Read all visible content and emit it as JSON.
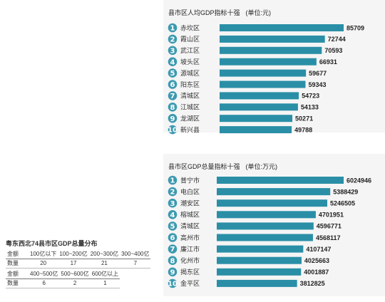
{
  "chart_data": [
    {
      "type": "bar",
      "orientation": "horizontal",
      "title": "县市区人均GDP指标十强",
      "unit": "(单位:元)",
      "ranks": [
        "1",
        "2",
        "3",
        "4",
        "5",
        "6",
        "7",
        "8",
        "9",
        "10"
      ],
      "categories": [
        "赤坎区",
        "霞山区",
        "武江区",
        "坡头区",
        "源城区",
        "阳东区",
        "清城区",
        "江城区",
        "龙湖区",
        "新兴县"
      ],
      "values": [
        85709,
        72744,
        70593,
        66931,
        59677,
        59343,
        54723,
        54133,
        50271,
        49788
      ],
      "bar_color": "#2a8fa6",
      "badge_color": "#3d9ab0"
    },
    {
      "type": "bar",
      "orientation": "horizontal",
      "title": "县市区GDP总量指标十强",
      "unit": "(单位:万元)",
      "ranks": [
        "1",
        "2",
        "3",
        "4",
        "5",
        "6",
        "7",
        "8",
        "9",
        "10"
      ],
      "categories": [
        "普宁市",
        "电白区",
        "潮安区",
        "榕城区",
        "清城区",
        "高州市",
        "廉江市",
        "化州市",
        "揭东区",
        "金平区"
      ],
      "values": [
        6024946,
        5388429,
        5246505,
        4701951,
        4596771,
        4568117,
        4107147,
        4025663,
        4001887,
        3812825
      ],
      "bar_color": "#2a8fa6",
      "badge_color": "#3d9ab0"
    }
  ],
  "distribution": {
    "title": "粤东西北74县市区GDP总量分布",
    "row1": {
      "header_label": "金额",
      "headers": [
        "100亿以下",
        "100~200亿",
        "200~300亿",
        "300~400亿"
      ],
      "count_label": "数量",
      "counts": [
        "20",
        "17",
        "21",
        "7"
      ]
    },
    "row2": {
      "header_label": "金额",
      "headers": [
        "400~500亿",
        "500~600亿",
        "600亿以上"
      ],
      "count_label": "数量",
      "counts": [
        "6",
        "2",
        "1"
      ]
    }
  }
}
